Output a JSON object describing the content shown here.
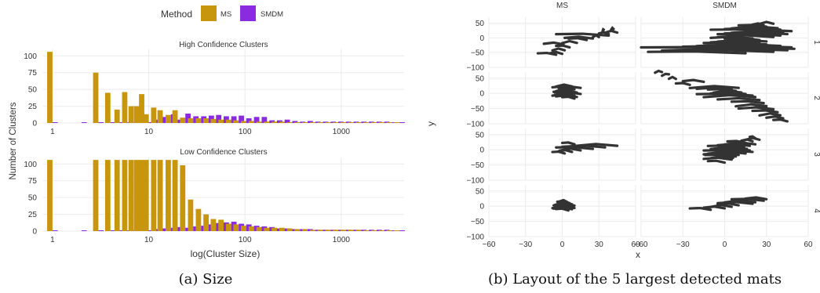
{
  "legend": {
    "title": "Method",
    "items": [
      "MS",
      "SMDM"
    ]
  },
  "colors": {
    "MS": "#C8960C",
    "SMDM": "#8A2BE2",
    "mat": "#333333",
    "grid": "#EBEBEB"
  },
  "captions": {
    "a": "(a) Size",
    "b": "(b) Layout of the 5 largest detected mats"
  },
  "chart_data": [
    {
      "type": "bar",
      "title": "",
      "ylabel": "Number of Clusters",
      "xlabel": "log(Cluster Size)",
      "x_scale": "log10",
      "xticks": [
        "1",
        "10",
        "100",
        "1000"
      ],
      "yticks": [
        "0",
        "25",
        "50",
        "75",
        "100"
      ],
      "ylim": [
        0,
        105
      ],
      "grid": true,
      "legend_position": "top",
      "panels": [
        {
          "title": "High Confidence Clusters",
          "x": [
            1,
            2,
            3,
            4,
            5,
            6,
            7,
            8,
            9,
            10,
            12,
            14,
            17,
            20,
            24,
            29,
            35,
            42,
            50,
            60,
            72,
            86,
            103,
            124,
            149,
            179,
            215,
            258,
            310,
            372,
            447,
            537,
            645,
            775,
            931,
            1118,
            1343,
            1613,
            1937,
            2326,
            2793,
            3354,
            4028
          ],
          "series": [
            {
              "name": "MS",
              "values": [
                106,
                0,
                75,
                45,
                20,
                46,
                25,
                25,
                43,
                13,
                23,
                19,
                12,
                19,
                8,
                7,
                7,
                7,
                6,
                5,
                5,
                4,
                3,
                3,
                2,
                2,
                2,
                2,
                1,
                1,
                1,
                1,
                1,
                1,
                1,
                1,
                1,
                1,
                1,
                1,
                1,
                1,
                1
              ]
            },
            {
              "name": "SMDM",
              "values": [
                1,
                1,
                1,
                1,
                1,
                1,
                1,
                1,
                1,
                1,
                5,
                9,
                13,
                5,
                14,
                10,
                10,
                11,
                12,
                10,
                10,
                11,
                7,
                9,
                9,
                4,
                4,
                5,
                3,
                2,
                3,
                2,
                2,
                2,
                2,
                2,
                2,
                2,
                2,
                2,
                2,
                1,
                1
              ]
            }
          ]
        },
        {
          "title": "Low Confidence Clusters",
          "x": [
            1,
            2,
            3,
            4,
            5,
            6,
            7,
            8,
            9,
            10,
            12,
            14,
            17,
            20,
            24,
            29,
            35,
            42,
            50,
            60,
            72,
            86,
            103,
            124,
            149,
            179,
            215,
            258,
            310,
            372,
            447,
            537,
            645,
            775,
            931,
            1118,
            1343,
            1613,
            1937,
            2326,
            2793,
            3354,
            4028
          ],
          "series": [
            {
              "name": "MS",
              "values": [
                106,
                0,
                106,
                106,
                106,
                106,
                106,
                106,
                106,
                106,
                106,
                106,
                106,
                106,
                98,
                47,
                33,
                25,
                18,
                17,
                11,
                10,
                8,
                7,
                6,
                5,
                5,
                5,
                4,
                3,
                3,
                2,
                2,
                2,
                2,
                2,
                2,
                2,
                1,
                1,
                1,
                1,
                1
              ]
            },
            {
              "name": "SMDM",
              "values": [
                1,
                1,
                1,
                1,
                1,
                1,
                1,
                1,
                1,
                1,
                3,
                4,
                5,
                6,
                5,
                7,
                8,
                10,
                12,
                13,
                14,
                11,
                10,
                8,
                7,
                6,
                4,
                4,
                3,
                3,
                3,
                2,
                2,
                2,
                2,
                2,
                2,
                2,
                2,
                2,
                2,
                1,
                1
              ]
            }
          ]
        }
      ]
    },
    {
      "type": "scatter",
      "title": "",
      "xlabel": "x",
      "ylabel": "y",
      "xlim": [
        -60,
        60
      ],
      "ylim": [
        -100,
        70
      ],
      "xticks": [
        "−60",
        "−30",
        "0",
        "30",
        "60"
      ],
      "yticks": [
        "50",
        "0",
        "−50",
        "−100"
      ],
      "columns": [
        "MS",
        "SMDM"
      ],
      "rows": [
        "1",
        "2",
        "3",
        "4"
      ],
      "grid": true,
      "mats": [
        {
          "row": "1",
          "col": "MS",
          "spans": [
            [
              -55,
              -20,
              -5
            ],
            [
              -52,
              -10,
              0
            ],
            [
              -40,
              -8,
              2
            ],
            [
              -30,
              -5,
              6
            ],
            [
              -20,
              -15,
              1
            ],
            [
              -15,
              0,
              12
            ],
            [
              -5,
              5,
              20
            ],
            [
              0,
              2,
              25
            ],
            [
              5,
              25,
              30
            ],
            [
              10,
              -5,
              38
            ],
            [
              15,
              30,
              38
            ],
            [
              20,
              35,
              45
            ],
            [
              25,
              34,
              33
            ],
            [
              30,
              42,
              40
            ]
          ]
        },
        {
          "row": "1",
          "col": "SMDM",
          "spans": [
            [
              -50,
              -55,
              15
            ],
            [
              -45,
              -40,
              35
            ],
            [
              -40,
              -45,
              45
            ],
            [
              -35,
              -60,
              50
            ],
            [
              -30,
              -30,
              48
            ],
            [
              -25,
              -20,
              40
            ],
            [
              -20,
              -15,
              30
            ],
            [
              -15,
              -10,
              25
            ],
            [
              -10,
              -5,
              30
            ],
            [
              -5,
              0,
              25
            ],
            [
              0,
              -10,
              20
            ],
            [
              5,
              -5,
              35
            ],
            [
              10,
              -5,
              40
            ],
            [
              15,
              0,
              45
            ],
            [
              20,
              5,
              42
            ],
            [
              25,
              -10,
              48
            ],
            [
              30,
              0,
              40
            ],
            [
              35,
              5,
              38
            ],
            [
              40,
              10,
              30
            ],
            [
              45,
              20,
              28
            ],
            [
              50,
              25,
              35
            ]
          ]
        },
        {
          "row": "2",
          "col": "MS",
          "spans": [
            [
              -15,
              0,
              10
            ],
            [
              -10,
              -5,
              12
            ],
            [
              -5,
              -8,
              10
            ],
            [
              0,
              -6,
              15
            ],
            [
              5,
              -7,
              12
            ],
            [
              10,
              -5,
              8
            ],
            [
              15,
              -3,
              10
            ],
            [
              20,
              -8,
              15
            ],
            [
              25,
              -5,
              8
            ]
          ]
        },
        {
          "row": "2",
          "col": "SMDM",
          "spans": [
            [
              -90,
              35,
              45
            ],
            [
              -80,
              30,
              42
            ],
            [
              -70,
              25,
              40
            ],
            [
              -60,
              20,
              38
            ],
            [
              -50,
              10,
              35
            ],
            [
              -40,
              8,
              30
            ],
            [
              -30,
              5,
              28
            ],
            [
              -20,
              -5,
              25
            ],
            [
              -10,
              -15,
              22
            ],
            [
              -5,
              -20,
              20
            ],
            [
              0,
              -10,
              15
            ],
            [
              5,
              -8,
              12
            ],
            [
              10,
              -12,
              8
            ],
            [
              15,
              -20,
              5
            ],
            [
              20,
              -25,
              10
            ],
            [
              30,
              -35,
              -25
            ],
            [
              40,
              -30,
              -15
            ],
            [
              50,
              -35,
              -40
            ],
            [
              60,
              -40,
              -45
            ],
            [
              70,
              -45,
              -50
            ]
          ]
        },
        {
          "row": "2",
          "col": "SMDM_ext",
          "spans": []
        },
        {
          "row": "3",
          "col": "MS",
          "spans": [
            [
              -10,
              -8,
              2
            ],
            [
              -5,
              -3,
              8
            ],
            [
              0,
              -2,
              15
            ],
            [
              5,
              -5,
              25
            ],
            [
              10,
              0,
              35
            ],
            [
              15,
              10,
              45
            ],
            [
              20,
              0,
              10
            ]
          ]
        },
        {
          "row": "3",
          "col": "SMDM",
          "spans": [
            [
              -40,
              -12,
              0
            ],
            [
              -30,
              -15,
              5
            ],
            [
              -25,
              -10,
              6
            ],
            [
              -20,
              -14,
              8
            ],
            [
              -15,
              -15,
              10
            ],
            [
              -10,
              -12,
              15
            ],
            [
              -5,
              -15,
              20
            ],
            [
              0,
              -8,
              18
            ],
            [
              5,
              -10,
              16
            ],
            [
              10,
              -12,
              14
            ],
            [
              15,
              -5,
              18
            ],
            [
              20,
              0,
              22
            ],
            [
              25,
              2,
              15
            ],
            [
              30,
              12,
              20
            ],
            [
              35,
              15,
              25
            ],
            [
              40,
              18,
              22
            ]
          ]
        },
        {
          "row": "4",
          "col": "MS",
          "spans": [
            [
              -12,
              -5,
              5
            ],
            [
              -8,
              -7,
              8
            ],
            [
              -4,
              -8,
              10
            ],
            [
              0,
              -7,
              9
            ],
            [
              4,
              -6,
              10
            ],
            [
              8,
              -5,
              8
            ],
            [
              12,
              -4,
              6
            ],
            [
              16,
              -2,
              4
            ]
          ]
        },
        {
          "row": "4",
          "col": "SMDM",
          "spans": [
            [
              -10,
              -25,
              -10
            ],
            [
              -5,
              -15,
              0
            ],
            [
              0,
              -10,
              5
            ],
            [
              5,
              -5,
              10
            ],
            [
              10,
              -5,
              20
            ],
            [
              15,
              0,
              22
            ],
            [
              20,
              5,
              28
            ],
            [
              25,
              15,
              30
            ]
          ]
        }
      ]
    }
  ]
}
